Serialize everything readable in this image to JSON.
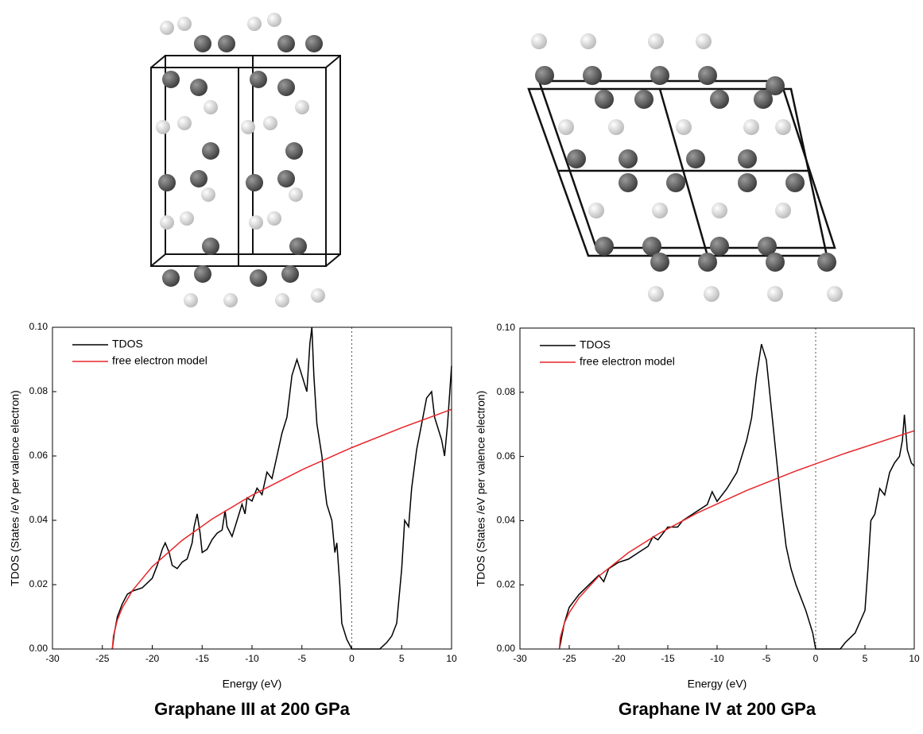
{
  "chart_data": [
    {
      "type": "line",
      "title": "Graphane III at 200 GPa",
      "xlabel": "Energy (eV)",
      "ylabel": "TDOS (States /eV per valence electron)",
      "xlim": [
        -30,
        10
      ],
      "ylim": [
        0,
        0.1
      ],
      "xticks": [
        -30,
        -25,
        -20,
        -15,
        -10,
        -5,
        0,
        5,
        10
      ],
      "yticks": [
        {
          "value": 0,
          "label": "0.00"
        },
        {
          "value": 0.02,
          "label": "0.02"
        },
        {
          "value": 0.04,
          "label": "0.04"
        },
        {
          "value": 0.06,
          "label": "0.06"
        },
        {
          "value": 0.08,
          "label": "0.08"
        },
        {
          "value": 0.1,
          "label": "0.10"
        }
      ],
      "vline": 0,
      "legend": "upper left",
      "series": [
        {
          "name": "TDOS",
          "color": "#000000",
          "x": [
            -24,
            -23.8,
            -23.5,
            -23,
            -22.5,
            -22,
            -21,
            -20,
            -19.5,
            -19,
            -18.7,
            -18.3,
            -18,
            -17.5,
            -17,
            -16.5,
            -16,
            -15.8,
            -15.5,
            -15.2,
            -15,
            -14.5,
            -14,
            -13.5,
            -13,
            -12.7,
            -12.5,
            -12,
            -11.5,
            -11,
            -10.7,
            -10.5,
            -10,
            -9.5,
            -9,
            -8.5,
            -8,
            -7.5,
            -7,
            -6.5,
            -6,
            -5.5,
            -5,
            -4.5,
            -4.2,
            -4,
            -3.8,
            -3.5,
            -3,
            -2.7,
            -2.5,
            -2,
            -1.7,
            -1.5,
            -1.2,
            -1,
            -0.5,
            0,
            2.8,
            3.5,
            4,
            4.5,
            5,
            5.3,
            5.7,
            6,
            6.5,
            7,
            7.5,
            8,
            8.3,
            8.7,
            9,
            9.3,
            9.6,
            10
          ],
          "values": [
            0,
            0.005,
            0.01,
            0.014,
            0.017,
            0.018,
            0.019,
            0.022,
            0.026,
            0.031,
            0.033,
            0.03,
            0.026,
            0.025,
            0.027,
            0.028,
            0.033,
            0.038,
            0.042,
            0.036,
            0.03,
            0.031,
            0.034,
            0.036,
            0.037,
            0.043,
            0.038,
            0.035,
            0.04,
            0.045,
            0.042,
            0.047,
            0.046,
            0.05,
            0.048,
            0.055,
            0.053,
            0.06,
            0.067,
            0.072,
            0.085,
            0.09,
            0.085,
            0.08,
            0.095,
            0.1,
            0.085,
            0.07,
            0.06,
            0.05,
            0.045,
            0.04,
            0.03,
            0.033,
            0.02,
            0.008,
            0.003,
            0,
            0,
            0.002,
            0.004,
            0.008,
            0.025,
            0.04,
            0.038,
            0.05,
            0.062,
            0.07,
            0.078,
            0.08,
            0.072,
            0.068,
            0.065,
            0.06,
            0.07,
            0.088
          ]
        },
        {
          "name": "free electron model",
          "color": "#e8262a",
          "x": [
            -24,
            -23.9,
            -23.5,
            -23,
            -22,
            -20,
            -17,
            -14,
            -10,
            -5,
            0,
            5,
            10
          ],
          "values": [
            0,
            0.004,
            0.009,
            0.0128,
            0.0181,
            0.0256,
            0.0338,
            0.0404,
            0.0478,
            0.0557,
            0.0626,
            0.0688,
            0.0745
          ]
        }
      ]
    },
    {
      "type": "line",
      "title": "Graphane IV at 200 GPa",
      "xlabel": "Energy (eV)",
      "ylabel": "TDOS (States /eV per valence electron)",
      "xlim": [
        -30,
        10
      ],
      "ylim": [
        0,
        0.1
      ],
      "xticks": [
        -30,
        -25,
        -20,
        -15,
        -10,
        -5,
        0,
        5,
        10
      ],
      "yticks": [
        {
          "value": 0,
          "label": "0.00"
        },
        {
          "value": 0.02,
          "label": "0.02"
        },
        {
          "value": 0.04,
          "label": "0.04"
        },
        {
          "value": 0.06,
          "label": "0.06"
        },
        {
          "value": 0.08,
          "label": "0.08"
        },
        {
          "value": 0.1,
          "label": "0.10"
        }
      ],
      "vline": 0,
      "legend": "upper left",
      "series": [
        {
          "name": "TDOS",
          "color": "#000000",
          "x": [
            -26,
            -25.5,
            -25,
            -24,
            -23,
            -22,
            -21.5,
            -21,
            -20,
            -19,
            -18,
            -17,
            -16.5,
            -16,
            -15,
            -14,
            -13.5,
            -13,
            -12,
            -11,
            -10.5,
            -10,
            -9,
            -8,
            -7.5,
            -7,
            -6.5,
            -6,
            -5.5,
            -5,
            -4.5,
            -4,
            -3.5,
            -3,
            -2.5,
            -2,
            -1,
            -0.3,
            0,
            2.5,
            3,
            4,
            5,
            5.3,
            5.6,
            6,
            6.5,
            7,
            7.5,
            8,
            8.5,
            8.8,
            9,
            9.3,
            9.7,
            10
          ],
          "values": [
            0,
            0.008,
            0.013,
            0.017,
            0.02,
            0.023,
            0.021,
            0.025,
            0.027,
            0.028,
            0.03,
            0.032,
            0.035,
            0.034,
            0.038,
            0.038,
            0.04,
            0.041,
            0.043,
            0.045,
            0.049,
            0.046,
            0.05,
            0.055,
            0.06,
            0.065,
            0.072,
            0.085,
            0.095,
            0.09,
            0.075,
            0.06,
            0.045,
            0.032,
            0.025,
            0.02,
            0.012,
            0.005,
            0,
            0,
            0.002,
            0.005,
            0.012,
            0.025,
            0.04,
            0.042,
            0.05,
            0.048,
            0.055,
            0.058,
            0.06,
            0.065,
            0.073,
            0.062,
            0.058,
            0.057
          ]
        },
        {
          "name": "free electron model",
          "color": "#e8262a",
          "x": [
            -26,
            -25.9,
            -25.5,
            -25,
            -24,
            -22,
            -19,
            -16,
            -12,
            -7,
            -2,
            3,
            10
          ],
          "values": [
            0,
            0.0036,
            0.008,
            0.0113,
            0.016,
            0.0227,
            0.03,
            0.0358,
            0.0424,
            0.0494,
            0.0555,
            0.061,
            0.068
          ]
        }
      ]
    }
  ]
}
